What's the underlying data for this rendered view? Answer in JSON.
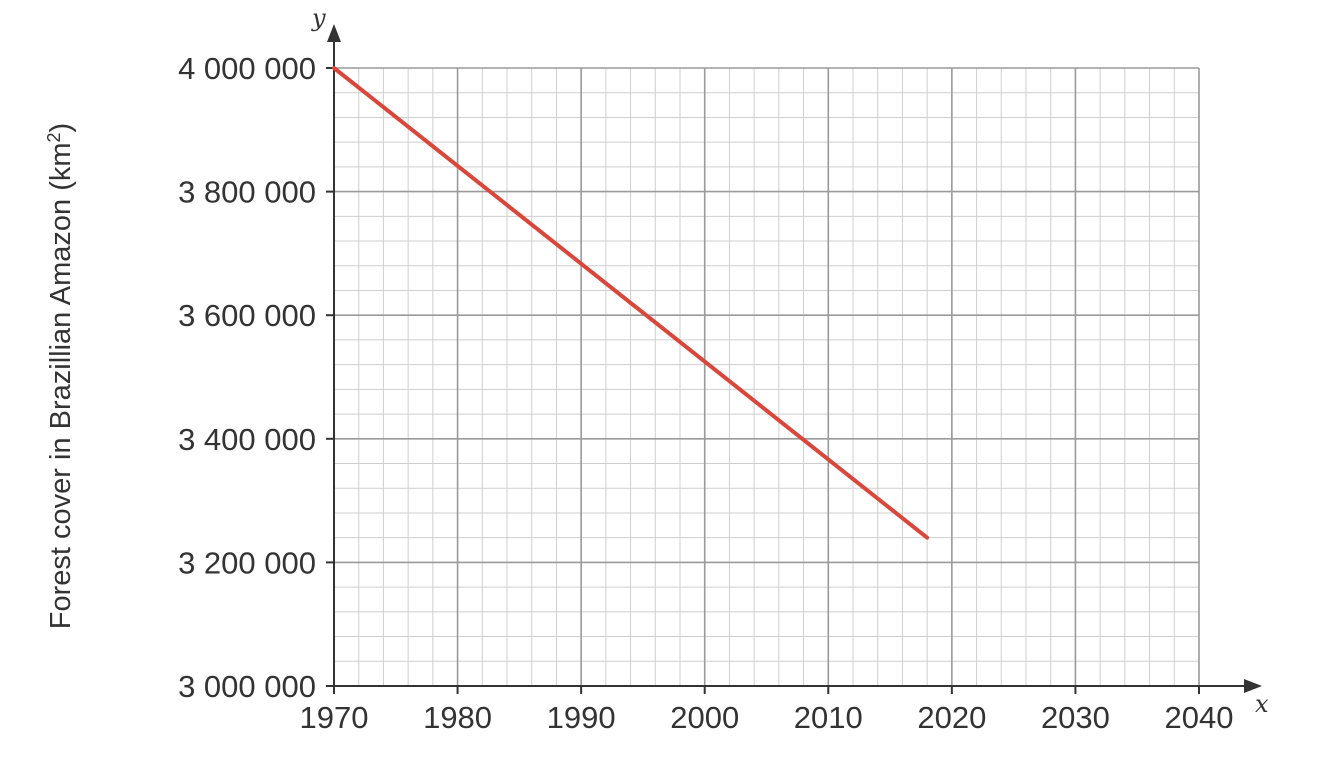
{
  "chart_data": {
    "type": "line",
    "title": "",
    "xlabel": "x",
    "ylabel": {
      "prefix": "Forest cover in Brazillian Amazon (km",
      "superscript": "2",
      "suffix": ")"
    },
    "y_axis_var": "y",
    "xlim": [
      1970,
      2040
    ],
    "ylim": [
      3000000,
      4000000
    ],
    "x_ticks": [
      1970,
      1980,
      1990,
      2000,
      2010,
      2020,
      2030,
      2040
    ],
    "x_tick_labels": [
      "1970",
      "1980",
      "1990",
      "2000",
      "2010",
      "2020",
      "2030",
      "2040"
    ],
    "y_ticks": [
      3000000,
      3200000,
      3400000,
      3600000,
      3800000,
      4000000
    ],
    "y_tick_labels": [
      "3 000 000",
      "3 200 000",
      "3 400 000",
      "3 600 000",
      "3 800 000",
      "4 000 000"
    ],
    "minor_per_major_x": 5,
    "minor_per_major_y": 5,
    "grid": true,
    "series": [
      {
        "color": "#d9463a",
        "x": [
          1970,
          2018
        ],
        "y": [
          4000000,
          3240000
        ]
      }
    ]
  }
}
